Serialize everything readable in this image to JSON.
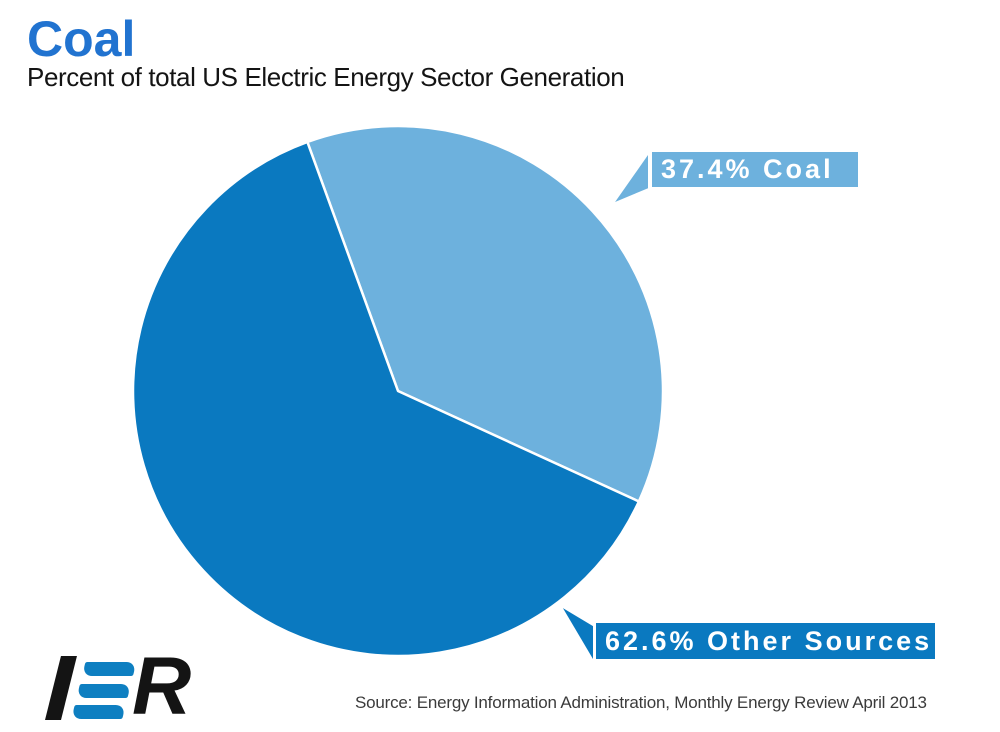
{
  "header": {
    "title": "Coal",
    "subtitle": "Percent of total US Electric Energy Sector Generation",
    "title_color": "#2173d0"
  },
  "chart_data": {
    "type": "pie",
    "title": "Coal",
    "subtitle": "Percent of total US Electric Energy Sector Generation",
    "start_angle_deg": -20,
    "grid": false,
    "legend_position": "callout-flags",
    "slice_separator_color": "#ffffff",
    "slices": [
      {
        "label": "Coal",
        "value": 37.4,
        "color": "#6db1dd",
        "callout": "37.4% Coal"
      },
      {
        "label": "Other Sources",
        "value": 62.6,
        "color": "#0a79c0",
        "callout": "62.6% Other Sources"
      }
    ]
  },
  "footer": {
    "source": "Source: Energy Information Administration, Monthly Energy Review April 2013",
    "logo": {
      "text": "IER",
      "letter_i": "I",
      "letter_r": "R",
      "accent_color": "#0e7fc1",
      "ink_color": "#141414"
    }
  }
}
